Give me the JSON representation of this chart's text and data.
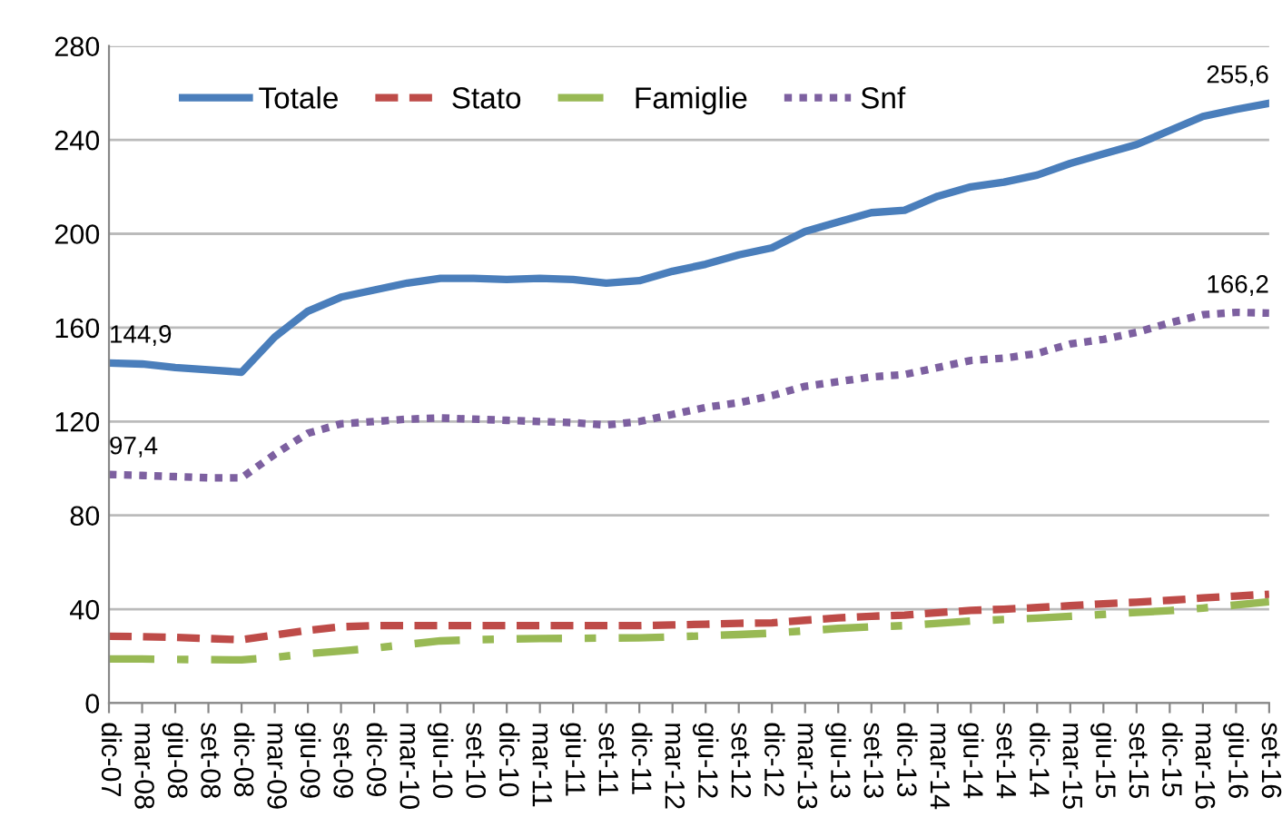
{
  "chart_data": {
    "type": "line",
    "categories": [
      "dic-07",
      "mar-08",
      "giu-08",
      "set-08",
      "dic-08",
      "mar-09",
      "giu-09",
      "set-09",
      "dic-09",
      "mar-10",
      "giu-10",
      "set-10",
      "dic-10",
      "mar-11",
      "giu-11",
      "set-11",
      "dic-11",
      "mar-12",
      "giu-12",
      "set-12",
      "dic-12",
      "mar-13",
      "giu-13",
      "set-13",
      "dic-13",
      "mar-14",
      "giu-14",
      "set-14",
      "dic-14",
      "mar-15",
      "giu-15",
      "set-15",
      "dic-15",
      "mar-16",
      "giu-16",
      "set-16"
    ],
    "series": [
      {
        "name": "Totale",
        "color": "#4a7ebb",
        "line_style": "solid",
        "values": [
          144.9,
          144.5,
          143,
          142,
          141,
          156,
          167,
          173,
          176,
          179,
          181,
          181,
          180.5,
          181,
          180.5,
          179,
          180,
          184,
          187,
          191,
          194,
          201,
          205,
          209,
          210,
          216,
          220,
          222,
          225,
          230,
          234,
          238,
          244,
          250,
          253,
          255.6
        ],
        "value_labels": [
          "144,9",
          null,
          null,
          null,
          null,
          null,
          null,
          null,
          null,
          null,
          null,
          null,
          null,
          null,
          null,
          null,
          null,
          null,
          null,
          null,
          null,
          null,
          null,
          null,
          null,
          null,
          null,
          null,
          null,
          null,
          null,
          null,
          null,
          null,
          null,
          "255,6"
        ]
      },
      {
        "name": "Stato",
        "color": "#be4b48",
        "line_style": "dashed",
        "values": [
          28.5,
          28.3,
          28,
          27.5,
          27,
          29,
          31,
          32.5,
          33,
          33,
          33,
          33,
          33,
          33,
          33,
          33,
          33,
          33.3,
          33.6,
          34,
          34.2,
          35.3,
          36.3,
          37,
          37.5,
          38.5,
          39.5,
          40,
          40.7,
          41.5,
          42.3,
          43,
          43.8,
          44.8,
          45.6,
          46.4
        ]
      },
      {
        "name": "Famiglie",
        "color": "#98b954",
        "line_style": "dashdot",
        "values": [
          18.8,
          18.8,
          18.6,
          18.5,
          18.4,
          19.5,
          21,
          22.2,
          23.4,
          25,
          26.5,
          27,
          27.3,
          27.5,
          27.6,
          27.7,
          27.8,
          28.2,
          28.7,
          29.2,
          29.8,
          30.8,
          31.8,
          32.5,
          33,
          34,
          35,
          35.6,
          36.2,
          37,
          37.8,
          38.6,
          39.4,
          40.5,
          41.8,
          43.2
        ]
      },
      {
        "name": "Snf",
        "color": "#7d60a0",
        "line_style": "dotted",
        "values": [
          97.4,
          97,
          96.5,
          96,
          96,
          106,
          115,
          119,
          120,
          121,
          121.5,
          121,
          120.5,
          120,
          119.5,
          118.5,
          120,
          123,
          126,
          128,
          131,
          135,
          137,
          139,
          140,
          143,
          146,
          147,
          149,
          153,
          155,
          158,
          162,
          165.5,
          166.5,
          166.2
        ],
        "value_labels": [
          "97,4",
          null,
          null,
          null,
          null,
          null,
          null,
          null,
          null,
          null,
          null,
          null,
          null,
          null,
          null,
          null,
          null,
          null,
          null,
          null,
          null,
          null,
          null,
          null,
          null,
          null,
          null,
          null,
          null,
          null,
          null,
          null,
          null,
          null,
          null,
          "166,2"
        ]
      }
    ],
    "ylim": [
      0,
      280
    ],
    "yticks": [
      0,
      40,
      80,
      120,
      160,
      200,
      240,
      280
    ],
    "grid": "y",
    "legend": "top left",
    "marker": "none"
  }
}
